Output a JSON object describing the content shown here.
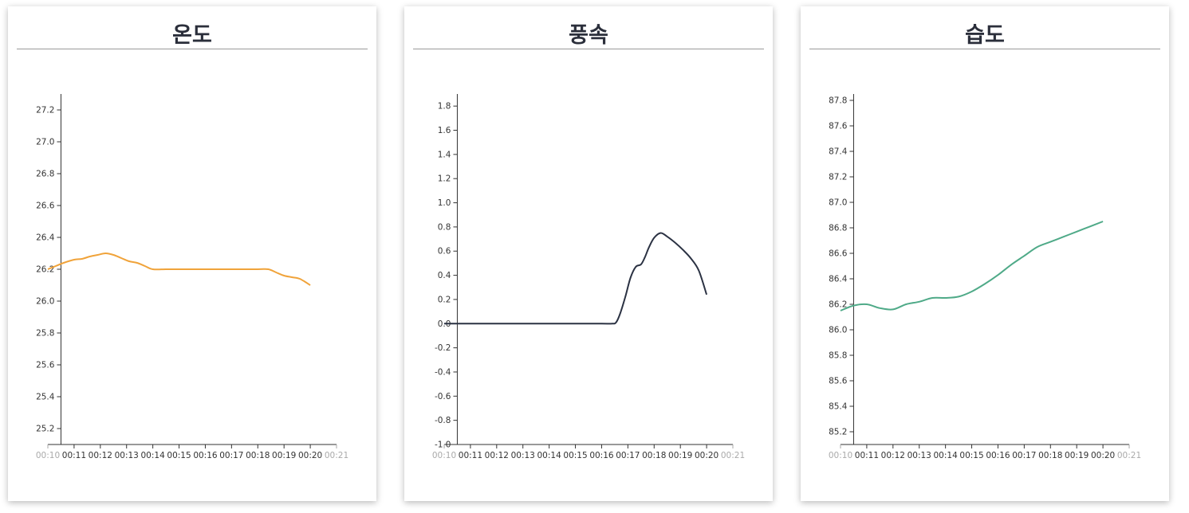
{
  "chart_data": [
    {
      "type": "line",
      "title": "온도",
      "color": "#f0a33a",
      "x_ticks": [
        "00:10",
        "00:11",
        "00:12",
        "00:13",
        "00:14",
        "00:15",
        "00:16",
        "00:17",
        "00:18",
        "00:19",
        "00:20",
        "00:21"
      ],
      "y_ticks": [
        "25.2",
        "25.4",
        "25.6",
        "25.8",
        "26.0",
        "26.2",
        "26.4",
        "26.6",
        "26.8",
        "27.0",
        "27.2"
      ],
      "xlim": [
        0,
        11
      ],
      "ylim": [
        25.1,
        27.3
      ],
      "series": [
        {
          "x": [
            0,
            0.3,
            0.6,
            1,
            1.3,
            1.6,
            1.9,
            2.2,
            2.5,
            2.8,
            3.1,
            3.4,
            3.7,
            4,
            4.5,
            5,
            6,
            7,
            8,
            8.4,
            8.7,
            9,
            9.3,
            9.6,
            10
          ],
          "y": [
            26.2,
            26.22,
            26.24,
            26.26,
            26.265,
            26.28,
            26.29,
            26.3,
            26.29,
            26.27,
            26.25,
            26.24,
            26.22,
            26.2,
            26.2,
            26.2,
            26.2,
            26.2,
            26.2,
            26.2,
            26.18,
            26.16,
            26.15,
            26.14,
            26.1
          ]
        }
      ]
    },
    {
      "type": "line",
      "title": "풍속",
      "color": "#2b3243",
      "x_ticks": [
        "00:10",
        "00:11",
        "00:12",
        "00:13",
        "00:14",
        "00:15",
        "00:16",
        "00:17",
        "00:18",
        "00:19",
        "00:20",
        "00:21"
      ],
      "y_ticks": [
        "-1.0",
        "-0.8",
        "-0.6",
        "-0.4",
        "-0.2",
        "0.0",
        "0.2",
        "0.4",
        "0.6",
        "0.8",
        "1.0",
        "1.2",
        "1.4",
        "1.6",
        "1.8"
      ],
      "xlim": [
        0,
        11
      ],
      "ylim": [
        -1.0,
        1.9
      ],
      "series": [
        {
          "x": [
            0,
            1,
            2,
            3,
            4,
            5,
            6,
            6.4,
            6.55,
            6.7,
            6.9,
            7.1,
            7.3,
            7.5,
            7.65,
            7.8,
            8,
            8.25,
            8.5,
            8.8,
            9.1,
            9.4,
            9.7,
            10
          ],
          "y": [
            0,
            0,
            0,
            0,
            0,
            0,
            0,
            0,
            0.01,
            0.08,
            0.22,
            0.38,
            0.47,
            0.49,
            0.55,
            0.63,
            0.71,
            0.75,
            0.72,
            0.67,
            0.61,
            0.54,
            0.44,
            0.24
          ]
        }
      ]
    },
    {
      "type": "line",
      "title": "습도",
      "color": "#4faa88",
      "x_ticks": [
        "00:10",
        "00:11",
        "00:12",
        "00:13",
        "00:14",
        "00:15",
        "00:16",
        "00:17",
        "00:18",
        "00:19",
        "00:20",
        "00:21"
      ],
      "y_ticks": [
        "85.2",
        "85.4",
        "85.6",
        "85.8",
        "86.0",
        "86.2",
        "86.4",
        "86.6",
        "86.8",
        "87.0",
        "87.2",
        "87.4",
        "87.6",
        "87.8"
      ],
      "xlim": [
        0,
        11
      ],
      "ylim": [
        85.1,
        87.85
      ],
      "series": [
        {
          "x": [
            0,
            0.5,
            1,
            1.5,
            2,
            2.5,
            3,
            3.5,
            4,
            4.5,
            5,
            5.5,
            6,
            6.5,
            7,
            7.5,
            8,
            8.5,
            9,
            9.5,
            10
          ],
          "y": [
            86.15,
            86.19,
            86.2,
            86.17,
            86.16,
            86.2,
            86.22,
            86.25,
            86.25,
            86.26,
            86.3,
            86.36,
            86.43,
            86.51,
            86.58,
            86.65,
            86.69,
            86.73,
            86.77,
            86.81,
            86.85
          ]
        }
      ]
    }
  ]
}
